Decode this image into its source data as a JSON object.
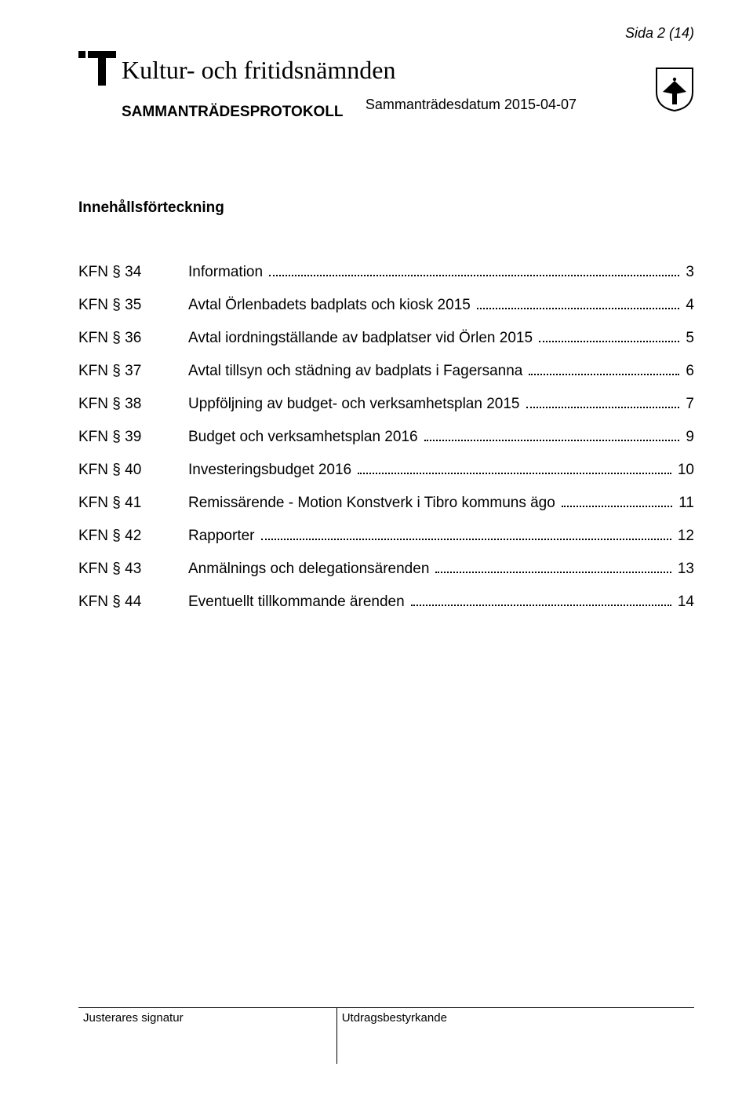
{
  "page_number": "Sida 2 (14)",
  "header": {
    "title": "Kultur- och fritidsnämnden",
    "subtitle": "SAMMANTRÄDESPROTOKOLL",
    "meeting_date": "Sammanträdesdatum 2015-04-07"
  },
  "toc": {
    "heading": "Innehållsförteckning",
    "items": [
      {
        "key": "KFN § 34",
        "text": "Information",
        "page": "3"
      },
      {
        "key": "KFN § 35",
        "text": "Avtal Örlenbadets badplats och kiosk  2015",
        "page": "4"
      },
      {
        "key": "KFN § 36",
        "text": "Avtal iordningställande av badplatser vid Örlen 2015",
        "page": "5"
      },
      {
        "key": "KFN § 37",
        "text": "Avtal tillsyn och städning av badplats i Fagersanna",
        "page": "6"
      },
      {
        "key": "KFN § 38",
        "text": "Uppföljning av budget- och verksamhetsplan 2015",
        "page": "7"
      },
      {
        "key": "KFN § 39",
        "text": "Budget och verksamhetsplan 2016",
        "page": "9"
      },
      {
        "key": "KFN § 40",
        "text": "Investeringsbudget 2016",
        "page": "10"
      },
      {
        "key": "KFN § 41",
        "text": "Remissärende - Motion Konstverk i Tibro kommuns ägo",
        "page": "11"
      },
      {
        "key": "KFN § 42",
        "text": "Rapporter",
        "page": "12"
      },
      {
        "key": "KFN § 43",
        "text": "Anmälnings och delegationsärenden",
        "page": "13"
      },
      {
        "key": "KFN § 44",
        "text": "Eventuellt tillkommande ärenden",
        "page": "14"
      }
    ]
  },
  "footer": {
    "left": "Justerares signatur",
    "right": "Utdragsbestyrkande"
  },
  "colors": {
    "text": "#000000",
    "background": "#ffffff"
  },
  "fonts": {
    "title_family": "Times New Roman",
    "body_family": "Arial",
    "title_size_pt": 24,
    "body_size_pt": 14,
    "page_number_italic": true
  }
}
